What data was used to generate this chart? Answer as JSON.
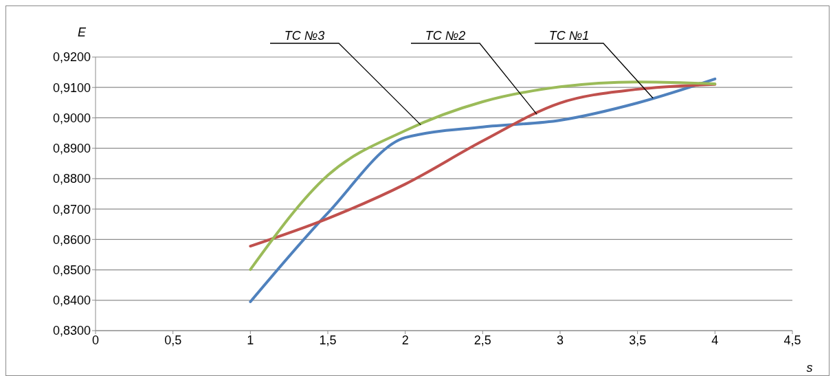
{
  "chart_data": {
    "type": "line",
    "xlabel": "s",
    "ylabel": "E",
    "x": [
      1,
      1.5,
      2,
      2.5,
      3,
      3.5,
      4
    ],
    "series": [
      {
        "name": "TC №1",
        "color": "#4f81bd",
        "values": [
          0.8395,
          0.8687,
          0.8935,
          0.897,
          0.8992,
          0.9049,
          0.9128
        ]
      },
      {
        "name": "TC №2",
        "color": "#c0504d",
        "values": [
          0.8578,
          0.8669,
          0.8782,
          0.8924,
          0.9049,
          0.9094,
          0.911
        ]
      },
      {
        "name": "TC №3",
        "color": "#9bbb59",
        "values": [
          0.8501,
          0.8811,
          0.8958,
          0.9053,
          0.9102,
          0.9118,
          0.9112
        ]
      }
    ],
    "xlim": [
      0,
      4.5
    ],
    "xticks": [
      0,
      {
        "value": 0.5,
        "label": "0,5"
      },
      1,
      {
        "value": 1.5,
        "label": "1,5"
      },
      2,
      {
        "value": 2.5,
        "label": "2,5"
      },
      3,
      {
        "value": 3.5,
        "label": "3,5"
      },
      4,
      {
        "value": 4.5,
        "label": "4,5"
      }
    ],
    "ylim": [
      0.83,
      0.92
    ],
    "yticks": [
      {
        "value": 0.83,
        "label": "0,8300"
      },
      {
        "value": 0.84,
        "label": "0,8400"
      },
      {
        "value": 0.85,
        "label": "0,8500"
      },
      {
        "value": 0.86,
        "label": "0,8600"
      },
      {
        "value": 0.87,
        "label": "0,8700"
      },
      {
        "value": 0.88,
        "label": "0,8800"
      },
      {
        "value": 0.89,
        "label": "0,8900"
      },
      {
        "value": 0.9,
        "label": "0,9000"
      },
      {
        "value": 0.91,
        "label": "0,9100"
      },
      {
        "value": 0.92,
        "label": "0,9200"
      }
    ],
    "grid": "y",
    "legend": false,
    "marker": "none",
    "line_style": "solid"
  }
}
